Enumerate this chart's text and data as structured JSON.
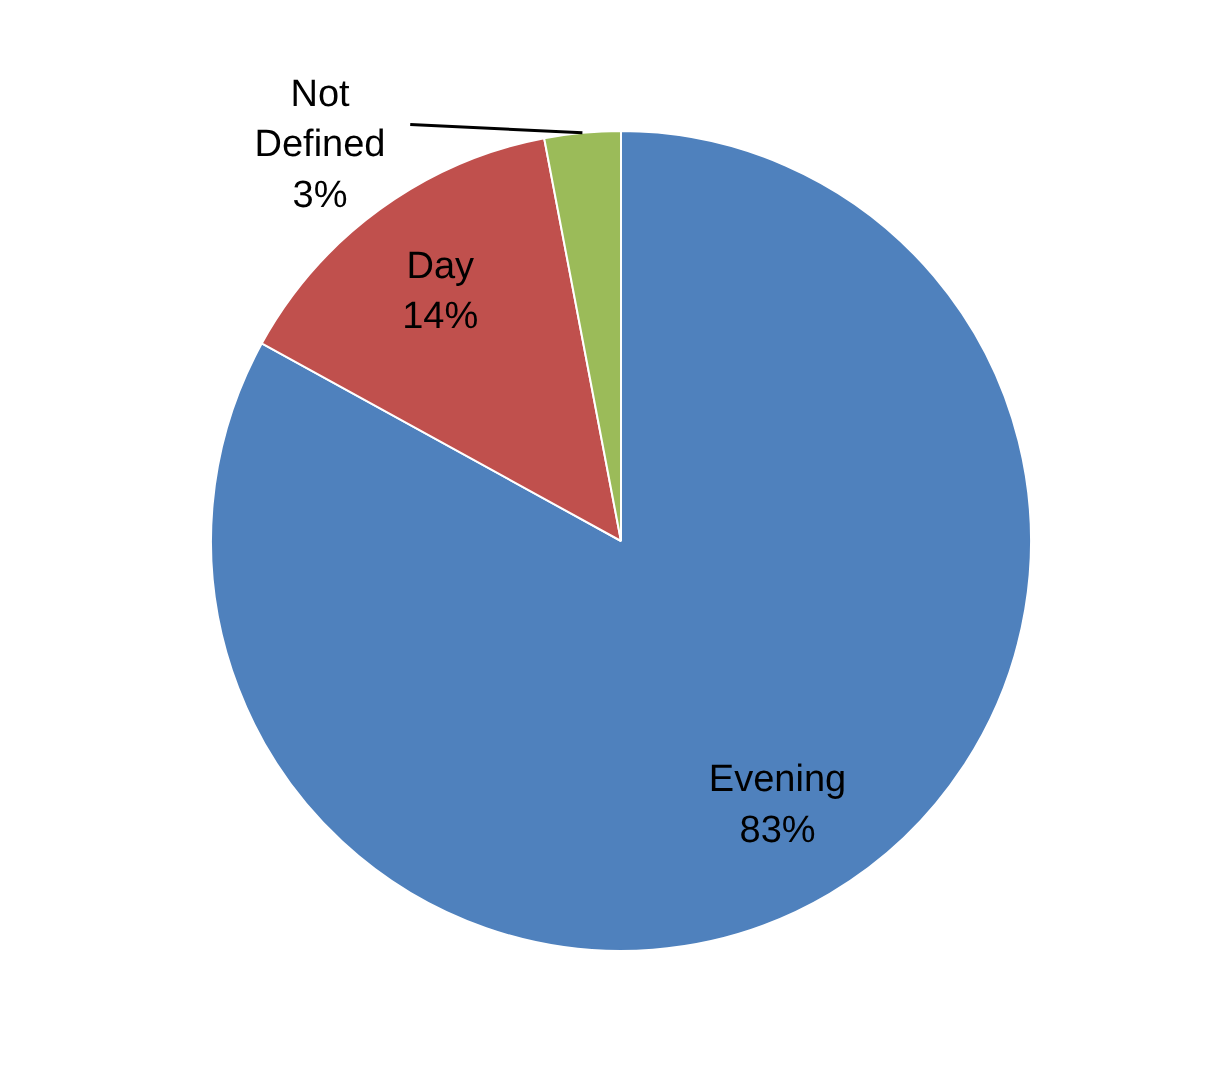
{
  "chart_data": {
    "type": "pie",
    "categories": [
      "Evening",
      "Day",
      "Not Defined"
    ],
    "values": [
      83,
      14,
      3
    ],
    "colors": [
      "#4f81bd",
      "#c0504d",
      "#9bbb59"
    ],
    "value_labels": [
      "83%",
      "14%",
      "3%"
    ]
  }
}
